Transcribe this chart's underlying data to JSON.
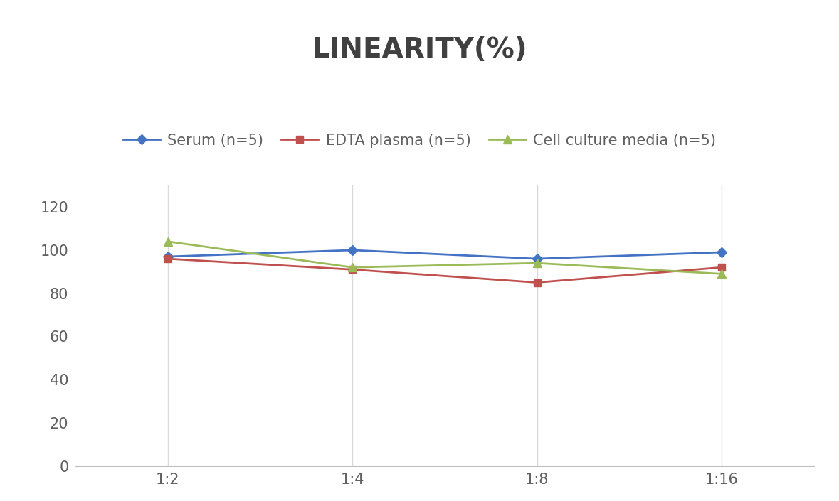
{
  "title": "LINEARITY(%)",
  "x_labels": [
    "1:2",
    "1:4",
    "1:8",
    "1:16"
  ],
  "x_positions": [
    0,
    1,
    2,
    3
  ],
  "series": [
    {
      "name": "Serum (n=5)",
      "values": [
        97,
        100,
        96,
        99
      ],
      "color": "#4472C4",
      "marker": "D",
      "marker_size": 7
    },
    {
      "name": "EDTA plasma (n=5)",
      "values": [
        96,
        91,
        85,
        92
      ],
      "color": "#C0504D",
      "marker": "s",
      "marker_size": 7
    },
    {
      "name": "Cell culture media (n=5)",
      "values": [
        104,
        92,
        94,
        89
      ],
      "color": "#9BBB59",
      "marker": "^",
      "marker_size": 8
    }
  ],
  "ylim": [
    0,
    130
  ],
  "yticks": [
    0,
    20,
    40,
    60,
    80,
    100,
    120
  ],
  "grid_color": "#D9D9D9",
  "background_color": "#FFFFFF",
  "title_fontsize": 28,
  "title_color": "#404040",
  "legend_fontsize": 15,
  "tick_fontsize": 15,
  "tick_color": "#606060"
}
